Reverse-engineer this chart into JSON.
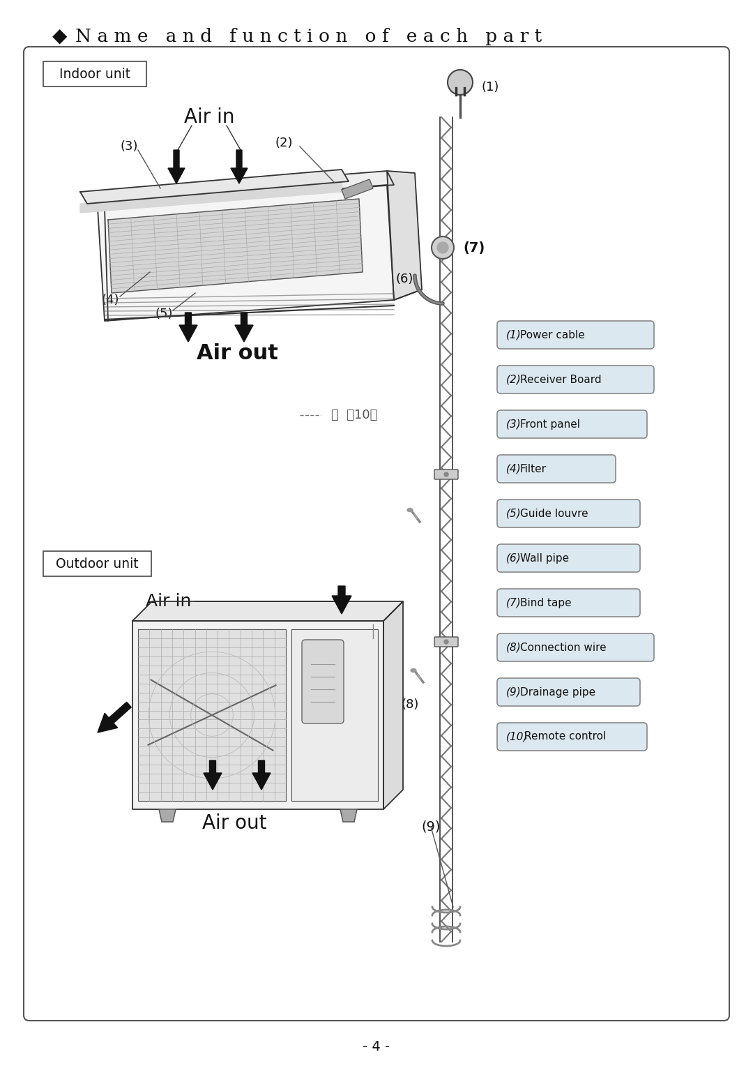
{
  "title_text": "N a m e   a n d   f u n c t i o n   o f   e a c h   p a r t",
  "title_diamond": "◆",
  "bg_color": "#ffffff",
  "text_color": "#1a1a1a",
  "legend_items": [
    [
      "(1)",
      "Power cable"
    ],
    [
      "(2)",
      "Receiver Board"
    ],
    [
      "(3)",
      "Front panel"
    ],
    [
      "(4)",
      "Filter"
    ],
    [
      "(5)",
      "Guide louvre"
    ],
    [
      "(6)",
      "Wall pipe"
    ],
    [
      "(7)",
      "Bind tape"
    ],
    [
      "(8)",
      "Connection wire"
    ],
    [
      "(9)",
      "Drainage pipe"
    ],
    [
      "(10)",
      "Remote control"
    ]
  ],
  "indoor_label": "Indoor unit",
  "outdoor_label": "Outdoor unit",
  "air_in_top": "Air in",
  "air_out_top": "Air out",
  "air_in_bottom": "Air in",
  "air_out_bottom": "Air out",
  "page_number": "- 4 -",
  "legend_bg": "#dce8f0",
  "legend_border": "#888888",
  "label_nums": [
    "(1)",
    "(2)",
    "(3)",
    "(4)",
    "(5)",
    "(6)",
    "(7)",
    "(8)",
    "(9)",
    "(10)"
  ]
}
